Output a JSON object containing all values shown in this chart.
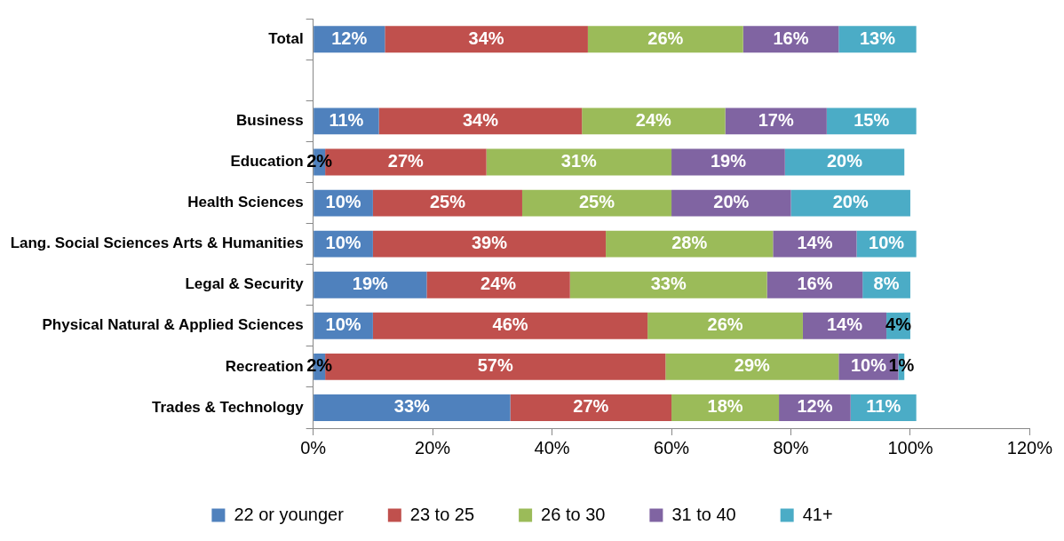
{
  "chart_data": {
    "type": "bar",
    "orientation": "horizontal",
    "stacked": true,
    "categories": [
      "Total",
      null,
      "Business",
      "Education",
      "Health Sciences",
      "Lang. Social Sciences Arts & Humanities",
      "Legal & Security",
      "Physical Natural & Applied Sciences",
      "Recreation",
      "Trades & Technology"
    ],
    "series": [
      {
        "name": "22 or younger",
        "color": "#4f81bd",
        "values": [
          12,
          null,
          11,
          2,
          10,
          10,
          19,
          10,
          2,
          33
        ],
        "value_labels": [
          "12%",
          null,
          "11%",
          "2%",
          "10%",
          "10%",
          "19%",
          "10%",
          "2%",
          "33%"
        ]
      },
      {
        "name": "23 to 25",
        "color": "#c0504d",
        "values": [
          34,
          null,
          34,
          27,
          25,
          39,
          24,
          46,
          57,
          27
        ],
        "value_labels": [
          "34%",
          null,
          "34%",
          "27%",
          "25%",
          "39%",
          "24%",
          "46%",
          "57%",
          "27%"
        ]
      },
      {
        "name": "26 to 30",
        "color": "#9bbb59",
        "values": [
          26,
          null,
          24,
          31,
          25,
          28,
          33,
          26,
          29,
          18
        ],
        "value_labels": [
          "26%",
          null,
          "24%",
          "31%",
          "25%",
          "28%",
          "33%",
          "26%",
          "29%",
          "18%"
        ]
      },
      {
        "name": "31 to 40",
        "color": "#8064a2",
        "values": [
          16,
          null,
          17,
          19,
          20,
          14,
          16,
          14,
          10,
          12
        ],
        "value_labels": [
          "16%",
          null,
          "17%",
          "19%",
          "20%",
          "14%",
          "16%",
          "14%",
          "10%",
          "12%"
        ]
      },
      {
        "name": "41+",
        "color": "#4bacc6",
        "values": [
          13,
          null,
          15,
          20,
          20,
          10,
          8,
          4,
          1,
          11
        ],
        "value_labels": [
          "13%",
          null,
          "15%",
          "20%",
          "20%",
          "10%",
          "8%",
          "4%",
          "1%",
          "11%"
        ]
      }
    ],
    "xlim": [
      0,
      120
    ],
    "xticks": [
      {
        "value": 0,
        "label": "0%"
      },
      {
        "value": 20,
        "label": "20%"
      },
      {
        "value": 40,
        "label": "40%"
      },
      {
        "value": 60,
        "label": "60%"
      },
      {
        "value": 80,
        "label": "80%"
      },
      {
        "value": 100,
        "label": "100%"
      },
      {
        "value": 120,
        "label": "120%"
      }
    ],
    "grid": false,
    "legend": "bottom"
  }
}
